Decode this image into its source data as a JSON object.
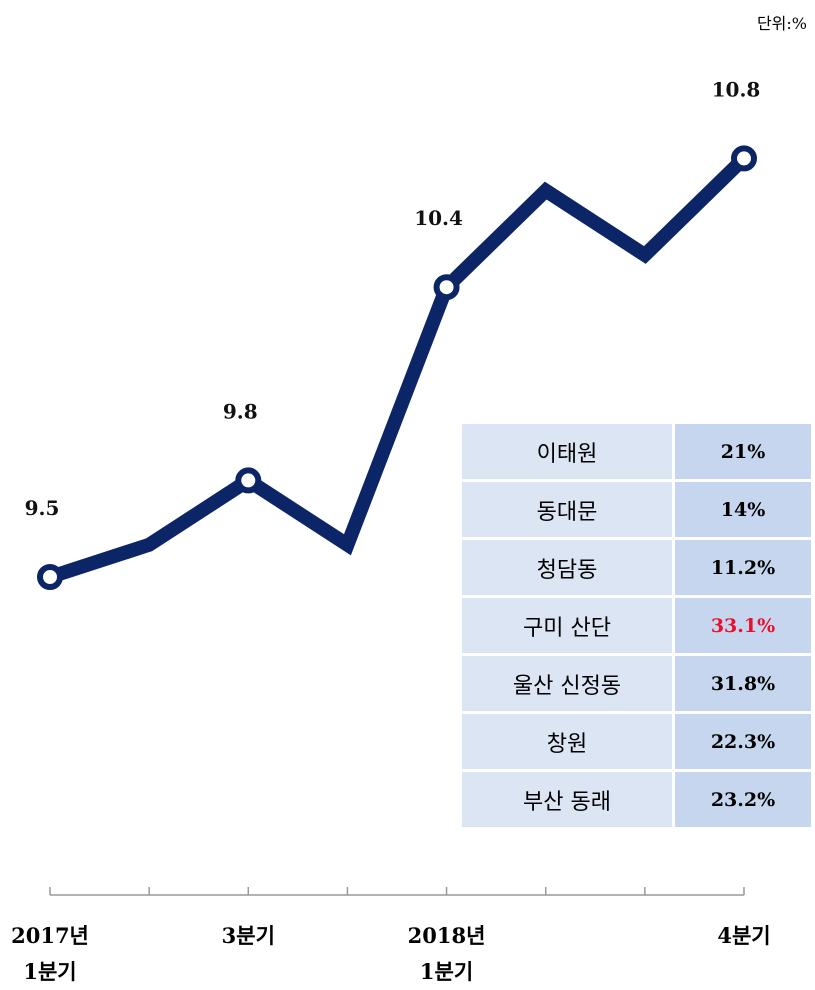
{
  "chart_data": {
    "type": "line",
    "unit": "단위:%",
    "categories": [
      "2017년\n1분기",
      null,
      "3분기",
      null,
      "2018년\n1분기",
      null,
      null,
      "4분기"
    ],
    "series": [
      {
        "color": "#0c2566",
        "values": [
          9.5,
          9.6,
          9.8,
          9.6,
          10.4,
          10.7,
          10.5,
          10.8
        ],
        "value_labels": [
          "9.5",
          null,
          "9.8",
          null,
          "10.4",
          null,
          null,
          "10.8"
        ]
      }
    ],
    "ylim": [
      9.0,
      11.0
    ],
    "table": {
      "rows": [
        {
          "name": "이태원",
          "value": "21%"
        },
        {
          "name": "동대문",
          "value": "14%"
        },
        {
          "name": "청담동",
          "value": "11.2%"
        },
        {
          "name": "구미 산단",
          "value": "33.1%",
          "color": "#e8102a"
        },
        {
          "name": "울산 신정동",
          "value": "31.8%"
        },
        {
          "name": "창원",
          "value": "22.3%"
        },
        {
          "name": "부산 동래",
          "value": "23.2%"
        }
      ]
    }
  }
}
